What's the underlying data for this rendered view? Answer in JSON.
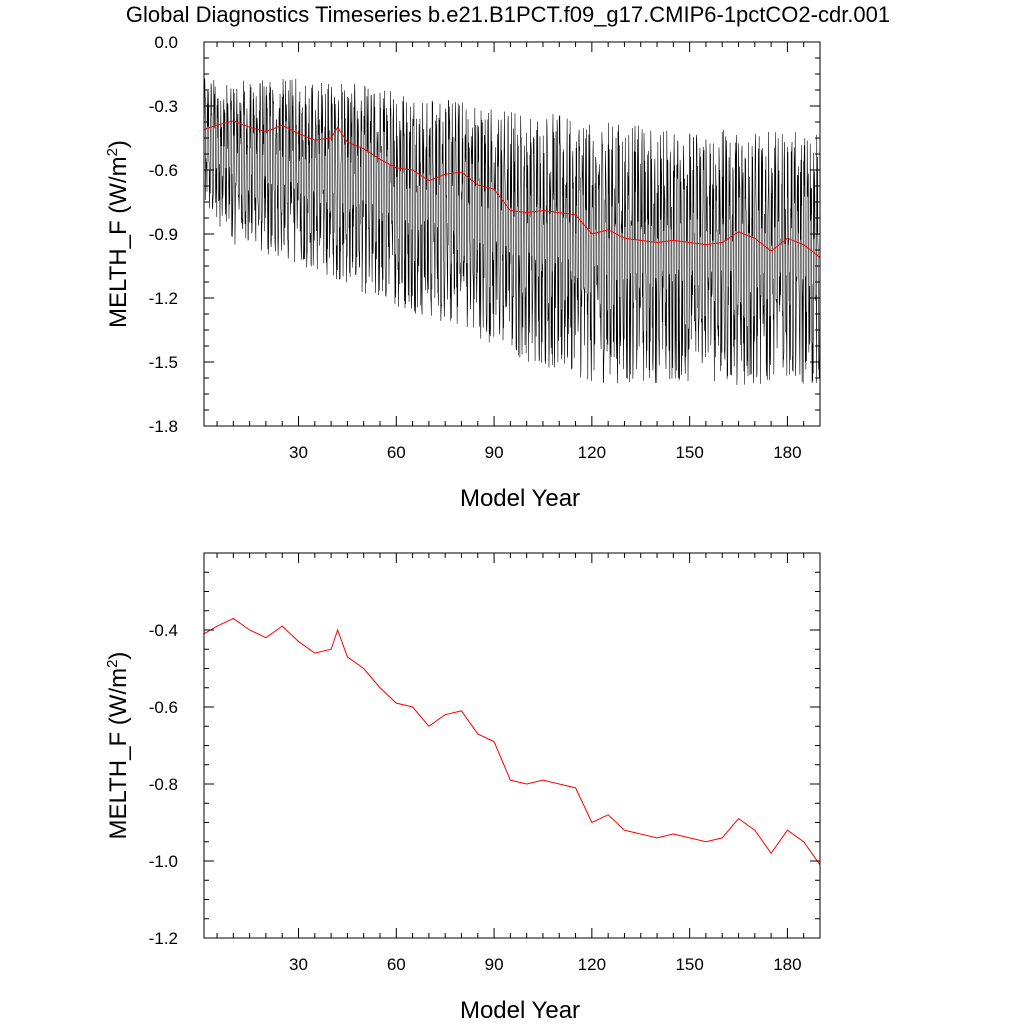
{
  "title": "Global Diagnostics Timeseries b.e21.B1PCT.f09_g17.CMIP6-1pctCO2-cdr.001",
  "chart_data": [
    {
      "type": "line",
      "xlabel": "Model Year",
      "ylabel_main": "MELTH_F (W/m",
      "ylabel_sup": "2",
      "ylabel_tail": ")",
      "xlim": [
        1,
        190
      ],
      "ylim": [
        -1.8,
        0.0
      ],
      "xticks": [
        30,
        60,
        90,
        120,
        150,
        180
      ],
      "yticks": [
        0.0,
        -0.3,
        -0.6,
        -0.9,
        -1.2,
        -1.5,
        -1.8
      ],
      "ytick_labels": [
        "0.0",
        "-0.3",
        "-0.6",
        "-0.9",
        "-1.2",
        "-1.5",
        "-1.8"
      ],
      "monthly_envelope": {
        "x": [
          1,
          10,
          20,
          30,
          40,
          50,
          60,
          70,
          80,
          90,
          100,
          110,
          120,
          130,
          140,
          150,
          160,
          170,
          180,
          190
        ],
        "max": [
          -0.17,
          -0.17,
          -0.17,
          -0.17,
          -0.18,
          -0.2,
          -0.22,
          -0.24,
          -0.27,
          -0.3,
          -0.32,
          -0.33,
          -0.36,
          -0.38,
          -0.4,
          -0.4,
          -0.41,
          -0.42,
          -0.42,
          -0.43
        ],
        "min": [
          -0.78,
          -0.95,
          -1.0,
          -1.05,
          -1.1,
          -1.18,
          -1.25,
          -1.3,
          -1.35,
          -1.42,
          -1.5,
          -1.55,
          -1.6,
          -1.6,
          -1.6,
          -1.6,
          -1.6,
          -1.62,
          -1.6,
          -1.62
        ]
      },
      "series": [
        {
          "color": "#ff0000",
          "x": [
            1,
            5,
            10,
            15,
            20,
            25,
            30,
            35,
            40,
            42,
            45,
            50,
            55,
            60,
            65,
            70,
            75,
            80,
            85,
            90,
            95,
            100,
            105,
            110,
            115,
            120,
            125,
            130,
            135,
            140,
            145,
            150,
            155,
            160,
            165,
            170,
            175,
            180,
            185,
            190
          ],
          "y": [
            -0.41,
            -0.39,
            -0.37,
            -0.4,
            -0.42,
            -0.39,
            -0.43,
            -0.46,
            -0.45,
            -0.4,
            -0.47,
            -0.5,
            -0.55,
            -0.59,
            -0.6,
            -0.65,
            -0.62,
            -0.61,
            -0.67,
            -0.69,
            -0.79,
            -0.8,
            -0.79,
            -0.8,
            -0.81,
            -0.9,
            -0.88,
            -0.92,
            -0.93,
            -0.94,
            -0.93,
            -0.94,
            -0.95,
            -0.94,
            -0.89,
            -0.92,
            -0.98,
            -0.92,
            -0.95,
            -1.01
          ]
        }
      ]
    },
    {
      "type": "line",
      "xlabel": "Model Year",
      "ylabel_main": "MELTH_F (W/m",
      "ylabel_sup": "2",
      "ylabel_tail": ")",
      "xlim": [
        1,
        190
      ],
      "ylim": [
        -1.2,
        -0.2
      ],
      "xticks": [
        30,
        60,
        90,
        120,
        150,
        180
      ],
      "yticks": [
        -0.4,
        -0.6,
        -0.8,
        -1.0,
        -1.2
      ],
      "ytick_labels": [
        "-0.4",
        "-0.6",
        "-0.8",
        "-1.0",
        "-1.2"
      ],
      "series": [
        {
          "color": "#ff0000",
          "x": [
            1,
            5,
            10,
            15,
            20,
            25,
            30,
            35,
            40,
            42,
            45,
            50,
            55,
            60,
            65,
            70,
            75,
            80,
            85,
            90,
            95,
            100,
            105,
            110,
            115,
            120,
            125,
            130,
            135,
            140,
            145,
            150,
            155,
            160,
            165,
            170,
            175,
            180,
            185,
            190
          ],
          "y": [
            -0.41,
            -0.39,
            -0.37,
            -0.4,
            -0.42,
            -0.39,
            -0.43,
            -0.46,
            -0.45,
            -0.4,
            -0.47,
            -0.5,
            -0.55,
            -0.59,
            -0.6,
            -0.65,
            -0.62,
            -0.61,
            -0.67,
            -0.69,
            -0.79,
            -0.8,
            -0.79,
            -0.8,
            -0.81,
            -0.9,
            -0.88,
            -0.92,
            -0.93,
            -0.94,
            -0.93,
            -0.94,
            -0.95,
            -0.94,
            -0.89,
            -0.92,
            -0.98,
            -0.92,
            -0.95,
            -1.01
          ]
        }
      ]
    }
  ]
}
